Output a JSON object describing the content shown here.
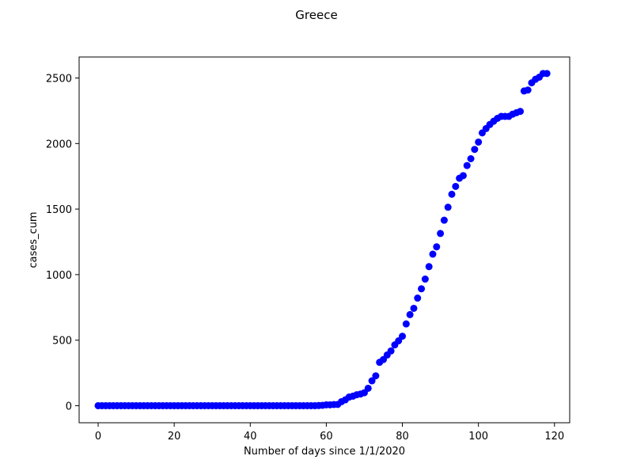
{
  "chart_data": {
    "type": "scatter",
    "title": "Greece",
    "xlabel": "Number of days since 1/1/2020",
    "ylabel": "cases_cum",
    "xlim": [
      -5,
      124
    ],
    "ylim": [
      -130,
      2660
    ],
    "xticks": [
      0,
      20,
      40,
      60,
      80,
      100,
      120
    ],
    "yticks": [
      0,
      500,
      1000,
      1500,
      2000,
      2500
    ],
    "marker_color": "#0000ff",
    "grid": false,
    "series": [
      {
        "x": [
          0,
          1,
          2,
          3,
          4,
          5,
          6,
          7,
          8,
          9,
          10,
          11,
          12,
          13,
          14,
          15,
          16,
          17,
          18,
          19,
          20,
          21,
          22,
          23,
          24,
          25,
          26,
          27,
          28,
          29,
          30,
          31,
          32,
          33,
          34,
          35,
          36,
          37,
          38,
          39,
          40,
          41,
          42,
          43,
          44,
          45,
          46,
          47,
          48,
          49,
          50,
          51,
          52,
          53,
          54,
          55,
          56,
          57,
          58,
          59,
          60,
          61,
          62,
          63,
          64,
          65,
          66,
          67,
          68,
          69,
          70,
          71,
          72,
          73,
          74,
          75,
          76,
          77,
          78,
          79,
          80,
          81,
          82,
          83,
          84,
          85,
          86,
          87,
          88,
          89,
          90,
          91,
          92,
          93,
          94,
          95,
          96,
          97,
          98,
          99,
          100,
          101,
          102,
          103,
          104,
          105,
          106,
          107,
          108,
          109,
          110,
          111,
          112,
          113,
          114,
          115,
          116,
          117,
          118
        ],
        "y": [
          0,
          0,
          0,
          0,
          0,
          0,
          0,
          0,
          0,
          0,
          0,
          0,
          0,
          0,
          0,
          0,
          0,
          0,
          0,
          0,
          0,
          0,
          0,
          0,
          0,
          0,
          0,
          0,
          0,
          0,
          0,
          0,
          0,
          0,
          0,
          0,
          0,
          0,
          0,
          0,
          0,
          0,
          0,
          0,
          0,
          0,
          0,
          0,
          0,
          0,
          0,
          0,
          0,
          0,
          0,
          0,
          0,
          0,
          1,
          3,
          7,
          7,
          9,
          10,
          31,
          45,
          66,
          73,
          84,
          89,
          99,
          133,
          190,
          228,
          331,
          352,
          387,
          418,
          464,
          495,
          530,
          624,
          695,
          743,
          821,
          892,
          966,
          1061,
          1156,
          1212,
          1314,
          1415,
          1514,
          1613,
          1673,
          1735,
          1755,
          1832,
          1884,
          1955,
          2011,
          2081,
          2114,
          2145,
          2170,
          2192,
          2207,
          2207,
          2207,
          2224,
          2235,
          2245,
          2401,
          2408,
          2463,
          2490,
          2506,
          2534,
          2534
        ]
      }
    ]
  }
}
